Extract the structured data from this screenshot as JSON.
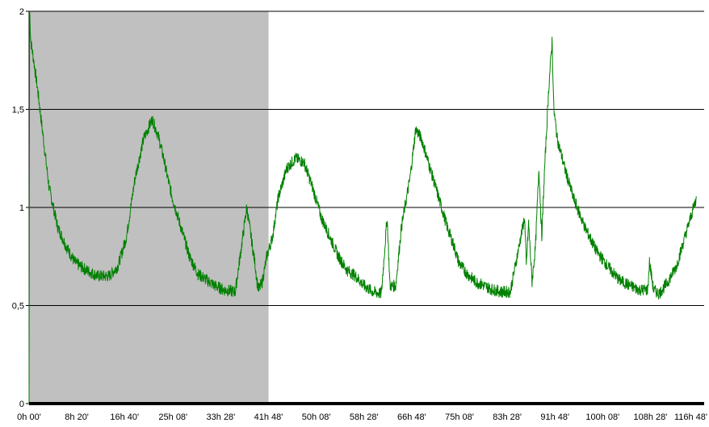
{
  "chart_data": {
    "type": "line",
    "title": "",
    "xlabel": "",
    "ylabel": "",
    "ylim": [
      0,
      2
    ],
    "xlim_hours": [
      0,
      117
    ],
    "yticks": [
      {
        "value": 0,
        "label": "0"
      },
      {
        "value": 0.5,
        "label": "0,5"
      },
      {
        "value": 1,
        "label": "1"
      },
      {
        "value": 1.5,
        "label": "1,5"
      },
      {
        "value": 2,
        "label": "2"
      }
    ],
    "xticks": [
      {
        "hours": 0,
        "label": "0h 00'"
      },
      {
        "hours": 8.333,
        "label": "8h 20'"
      },
      {
        "hours": 16.667,
        "label": "16h 40'"
      },
      {
        "hours": 25.133,
        "label": "25h 08'"
      },
      {
        "hours": 33.467,
        "label": "33h 28'"
      },
      {
        "hours": 41.8,
        "label": "41h 48'"
      },
      {
        "hours": 50.133,
        "label": "50h 08'"
      },
      {
        "hours": 58.467,
        "label": "58h 28'"
      },
      {
        "hours": 66.8,
        "label": "66h 48'"
      },
      {
        "hours": 75.133,
        "label": "75h 08'"
      },
      {
        "hours": 83.467,
        "label": "83h 28'"
      },
      {
        "hours": 91.8,
        "label": "91h 48'"
      },
      {
        "hours": 100.133,
        "label": "100h 08'"
      },
      {
        "hours": 108.467,
        "label": "108h 28'"
      },
      {
        "hours": 116.8,
        "label": "116h 48'"
      }
    ],
    "grid": "horizontal",
    "shaded_region_hours": [
      0,
      41.8
    ],
    "series": [
      {
        "color": "#008000",
        "x_hours": [
          0,
          0.1,
          0.3,
          0.8,
          1.5,
          2.5,
          3.5,
          5,
          6.5,
          8,
          10,
          12,
          14,
          15.5,
          17,
          18.5,
          20,
          21.5,
          22.5,
          23.5,
          24.2,
          25,
          26.5,
          28,
          29.5,
          31,
          32.5,
          34,
          36,
          38,
          39.5,
          39.8,
          40.1,
          40.7,
          41.5,
          42.5,
          43.5,
          45,
          46.5,
          48,
          49.5,
          51,
          52.5,
          54,
          55.5,
          57,
          58.5,
          60,
          61.5,
          62.5,
          63,
          63.4,
          64,
          64.5,
          65,
          66.5,
          67.5,
          68.5,
          70,
          71.5,
          73,
          74.2,
          75,
          76.5,
          78,
          79.5,
          81,
          82.5,
          84,
          86.5,
          86.8,
          87.2,
          87.8,
          88.4,
          89,
          89.5,
          90,
          90.7,
          91.3,
          91.6,
          92.2,
          93.5,
          95,
          97,
          99,
          101,
          103,
          105,
          106.5,
          108,
          108.3,
          109,
          110,
          111.5,
          113,
          114.5,
          116.5
        ],
        "y_values": [
          0,
          2.0,
          1.85,
          1.75,
          1.6,
          1.35,
          1.1,
          0.9,
          0.8,
          0.72,
          0.68,
          0.65,
          0.65,
          0.7,
          0.85,
          1.15,
          1.35,
          1.45,
          1.37,
          1.25,
          1.15,
          1.05,
          0.9,
          0.75,
          0.66,
          0.63,
          0.6,
          0.58,
          0.57,
          1.0,
          0.7,
          0.62,
          0.58,
          0.62,
          0.75,
          0.85,
          1.05,
          1.2,
          1.25,
          1.23,
          1.1,
          0.95,
          0.85,
          0.75,
          0.68,
          0.65,
          0.6,
          0.57,
          0.56,
          0.95,
          0.6,
          0.6,
          0.6,
          0.75,
          0.9,
          1.15,
          1.4,
          1.35,
          1.2,
          1.05,
          0.9,
          0.8,
          0.72,
          0.66,
          0.62,
          0.6,
          0.58,
          0.57,
          0.57,
          0.95,
          0.7,
          0.92,
          0.62,
          0.8,
          1.2,
          0.85,
          1.2,
          1.6,
          1.85,
          1.5,
          1.35,
          1.2,
          1.05,
          0.9,
          0.78,
          0.7,
          0.63,
          0.6,
          0.58,
          0.58,
          0.72,
          0.58,
          0.56,
          0.62,
          0.7,
          0.85,
          1.05
        ]
      }
    ]
  }
}
